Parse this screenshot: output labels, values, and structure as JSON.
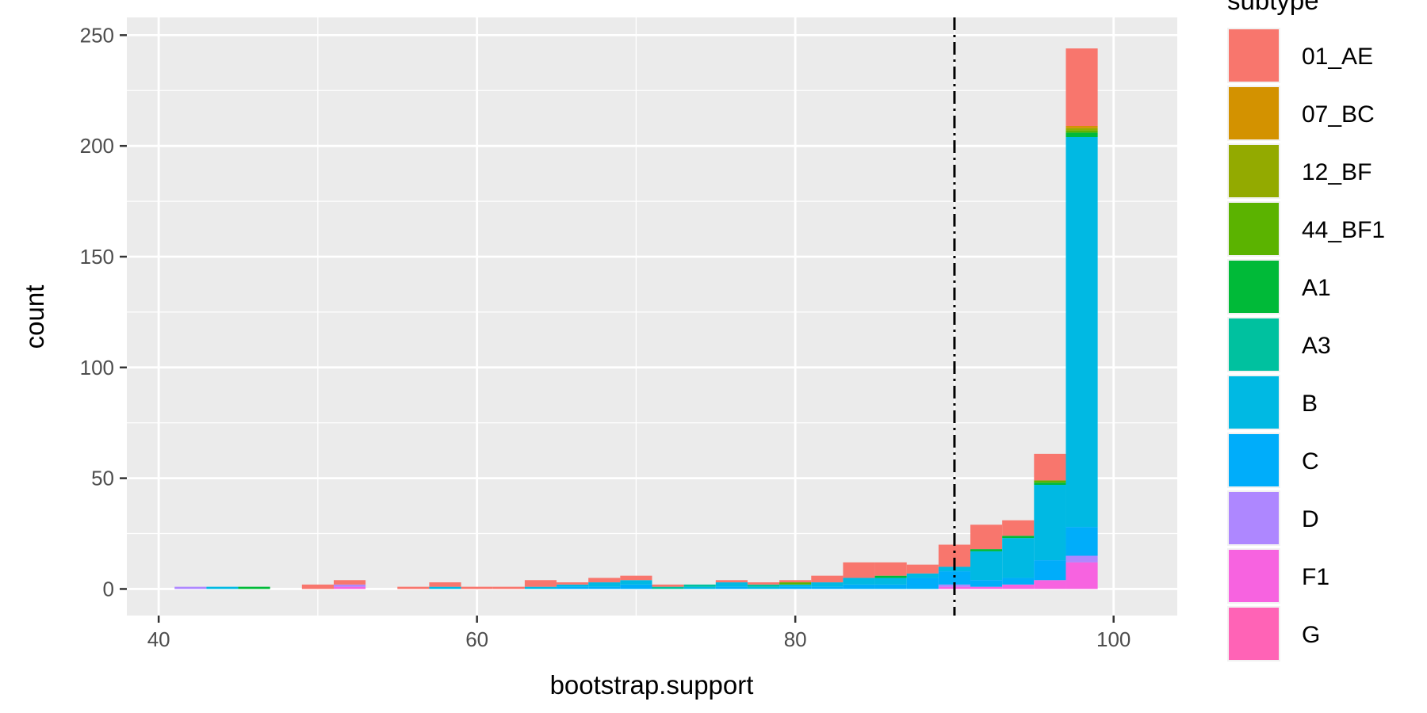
{
  "chart_data": {
    "type": "bar",
    "stacked": true,
    "xlabel": "bootstrap.support",
    "ylabel": "count",
    "xlim": [
      38,
      104
    ],
    "ylim": [
      -12,
      258
    ],
    "x_ticks": [
      40,
      60,
      80,
      100
    ],
    "y_ticks": [
      0,
      50,
      100,
      150,
      200,
      250
    ],
    "bin_width": 2,
    "bin_centers": [
      42,
      44,
      46,
      48,
      50,
      52,
      54,
      56,
      58,
      60,
      62,
      64,
      66,
      68,
      70,
      72,
      74,
      76,
      78,
      80,
      82,
      84,
      86,
      88,
      90,
      92,
      94,
      96,
      98
    ],
    "vline": {
      "x": 90,
      "style": "dotdash"
    },
    "grid": true,
    "legend": {
      "title": "subtype",
      "position": "right"
    },
    "series": [
      {
        "name": "01_AE",
        "color": "#F8766D",
        "values": [
          0,
          0,
          0,
          0,
          2,
          2,
          0,
          1,
          2,
          1,
          1,
          3,
          1,
          2,
          2,
          1,
          0,
          1,
          1,
          1,
          3,
          7,
          6,
          4,
          10,
          11,
          7,
          12,
          35
        ]
      },
      {
        "name": "07_BC",
        "color": "#D39200",
        "values": [
          0,
          0,
          0,
          0,
          0,
          0,
          0,
          0,
          0,
          0,
          0,
          0,
          0,
          0,
          0,
          0,
          0,
          0,
          0,
          0,
          0,
          0,
          0,
          0,
          0,
          0,
          0,
          0,
          1
        ]
      },
      {
        "name": "12_BF",
        "color": "#93AA00",
        "values": [
          0,
          0,
          0,
          0,
          0,
          0,
          0,
          0,
          0,
          0,
          0,
          0,
          0,
          0,
          0,
          0,
          0,
          0,
          0,
          0,
          0,
          0,
          0,
          0,
          0,
          0,
          0,
          0,
          1
        ]
      },
      {
        "name": "44_BF1",
        "color": "#5BB300",
        "values": [
          0,
          0,
          0,
          0,
          0,
          0,
          0,
          0,
          0,
          0,
          0,
          0,
          0,
          0,
          0,
          0,
          0,
          0,
          0,
          1,
          0,
          0,
          0,
          0,
          0,
          0,
          0,
          1,
          1
        ]
      },
      {
        "name": "A1",
        "color": "#00BA38",
        "values": [
          0,
          0,
          1,
          0,
          0,
          0,
          0,
          0,
          0,
          0,
          0,
          0,
          0,
          0,
          0,
          0,
          0,
          0,
          0,
          0,
          0,
          0,
          1,
          0,
          0,
          1,
          1,
          1,
          2
        ]
      },
      {
        "name": "A3",
        "color": "#00C19F",
        "values": [
          0,
          0,
          0,
          0,
          0,
          0,
          0,
          0,
          0,
          0,
          0,
          0,
          0,
          0,
          0,
          1,
          1,
          0,
          1,
          0,
          0,
          0,
          0,
          0,
          0,
          0,
          0,
          0,
          0
        ]
      },
      {
        "name": "B",
        "color": "#00B9E3",
        "values": [
          0,
          1,
          0,
          0,
          0,
          0,
          0,
          0,
          1,
          0,
          0,
          1,
          1,
          2,
          2,
          0,
          1,
          2,
          1,
          1,
          2,
          3,
          3,
          2,
          2,
          13,
          18,
          34,
          176
        ]
      },
      {
        "name": "C",
        "color": "#00ADFA",
        "values": [
          0,
          0,
          0,
          0,
          0,
          0,
          0,
          0,
          0,
          0,
          0,
          0,
          1,
          1,
          2,
          0,
          0,
          1,
          0,
          1,
          1,
          2,
          2,
          5,
          6,
          3,
          3,
          9,
          13
        ]
      },
      {
        "name": "D",
        "color": "#AE87FF",
        "values": [
          1,
          0,
          0,
          0,
          0,
          1,
          0,
          0,
          0,
          0,
          0,
          0,
          0,
          0,
          0,
          0,
          0,
          0,
          0,
          0,
          0,
          0,
          0,
          0,
          1,
          0,
          0,
          0,
          3
        ]
      },
      {
        "name": "F1",
        "color": "#F763E0",
        "values": [
          0,
          0,
          0,
          0,
          0,
          1,
          0,
          0,
          0,
          0,
          0,
          0,
          0,
          0,
          0,
          0,
          0,
          0,
          0,
          0,
          0,
          0,
          0,
          0,
          1,
          1,
          2,
          4,
          12
        ]
      },
      {
        "name": "G",
        "color": "#FF63B6",
        "values": [
          0,
          0,
          0,
          0,
          0,
          0,
          0,
          0,
          0,
          0,
          0,
          0,
          0,
          0,
          0,
          0,
          0,
          0,
          0,
          0,
          0,
          0,
          0,
          0,
          0,
          0,
          0,
          0,
          0
        ]
      }
    ]
  }
}
